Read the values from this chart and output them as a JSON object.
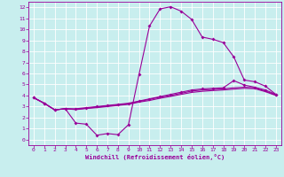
{
  "xlabel": "Windchill (Refroidissement éolien,°C)",
  "xlim": [
    0,
    23
  ],
  "ylim": [
    0,
    12
  ],
  "xticks": [
    0,
    1,
    2,
    3,
    4,
    5,
    6,
    7,
    8,
    9,
    10,
    11,
    12,
    13,
    14,
    15,
    16,
    17,
    18,
    19,
    20,
    21,
    22,
    23
  ],
  "yticks": [
    0,
    1,
    2,
    3,
    4,
    5,
    6,
    7,
    8,
    9,
    10,
    11,
    12
  ],
  "bg_color": "#c8eeee",
  "line_color": "#990099",
  "grid_color": "#ffffff",
  "curve1_x": [
    0,
    1,
    2,
    3,
    4,
    5,
    6,
    7,
    8,
    9,
    10,
    11,
    12,
    13,
    14,
    15,
    16,
    17,
    18,
    19,
    20,
    21,
    22,
    23
  ],
  "curve1_y": [
    3.8,
    3.3,
    2.7,
    2.8,
    1.5,
    1.4,
    0.4,
    0.55,
    0.45,
    1.35,
    5.9,
    10.3,
    11.85,
    12.05,
    11.65,
    10.9,
    9.3,
    9.1,
    8.8,
    7.5,
    5.4,
    5.25,
    4.85,
    4.1
  ],
  "curve2_x": [
    0,
    1,
    2,
    3,
    4,
    5,
    6,
    7,
    8,
    9,
    10,
    11,
    12,
    13,
    14,
    15,
    16,
    17,
    18,
    19,
    20,
    21,
    22,
    23
  ],
  "curve2_y": [
    3.8,
    3.3,
    2.7,
    2.8,
    2.8,
    2.9,
    3.0,
    3.1,
    3.2,
    3.3,
    3.5,
    3.7,
    3.9,
    4.1,
    4.3,
    4.5,
    4.6,
    4.65,
    4.7,
    5.35,
    4.95,
    4.75,
    4.5,
    4.1
  ],
  "curve3_x": [
    0,
    1,
    2,
    3,
    4,
    5,
    6,
    7,
    8,
    9,
    10,
    11,
    12,
    13,
    14,
    15,
    16,
    17,
    18,
    19,
    20,
    21,
    22,
    23
  ],
  "curve3_y": [
    3.8,
    3.3,
    2.7,
    2.8,
    2.75,
    2.85,
    2.95,
    3.05,
    3.15,
    3.25,
    3.45,
    3.65,
    3.85,
    4.0,
    4.2,
    4.4,
    4.5,
    4.55,
    4.6,
    4.7,
    4.75,
    4.7,
    4.4,
    4.05
  ],
  "curve4_x": [
    0,
    1,
    2,
    3,
    4,
    5,
    6,
    7,
    8,
    9,
    10,
    11,
    12,
    13,
    14,
    15,
    16,
    17,
    18,
    19,
    20,
    21,
    22,
    23
  ],
  "curve4_y": [
    3.8,
    3.3,
    2.7,
    2.8,
    2.72,
    2.82,
    2.9,
    3.0,
    3.1,
    3.2,
    3.4,
    3.55,
    3.75,
    3.92,
    4.1,
    4.28,
    4.38,
    4.45,
    4.5,
    4.58,
    4.65,
    4.62,
    4.35,
    4.0
  ]
}
